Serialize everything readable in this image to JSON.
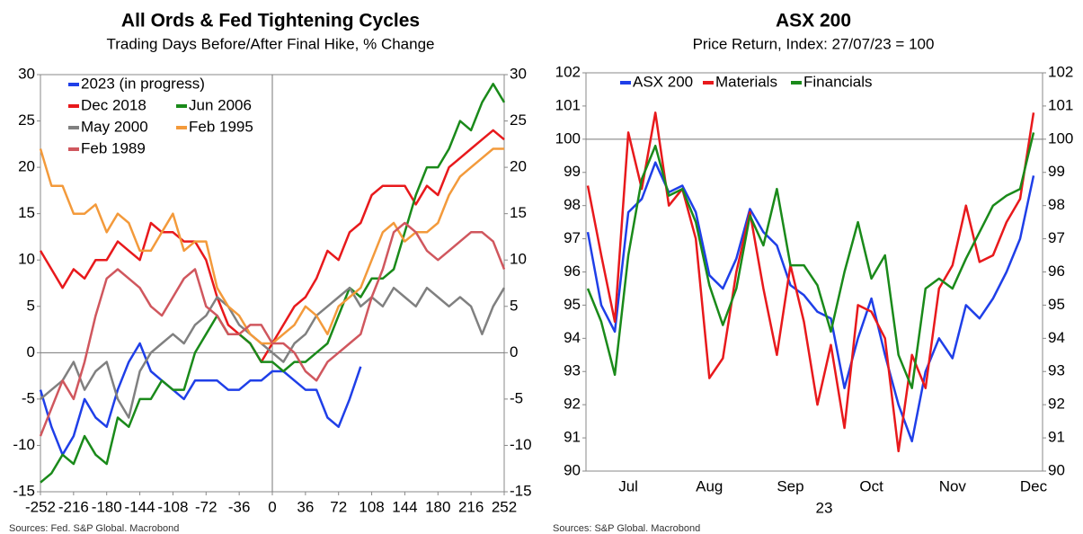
{
  "chart_data": [
    {
      "type": "line",
      "title": "All Ords & Fed Tightening Cycles",
      "subtitle": "Trading Days Before/After Final Hike, % Change",
      "source": "Sources: Fed. S&P Global. Macrobond",
      "x": [
        -252,
        -240,
        -228,
        -216,
        -204,
        -192,
        -180,
        -168,
        -156,
        -144,
        -132,
        -120,
        -108,
        -96,
        -84,
        -72,
        -60,
        -48,
        -36,
        -24,
        -12,
        0,
        12,
        24,
        36,
        48,
        60,
        72,
        84,
        96,
        108,
        120,
        132,
        144,
        156,
        168,
        180,
        192,
        204,
        216,
        228,
        240,
        252
      ],
      "xlim": [
        -252,
        252
      ],
      "xticks": [
        -252,
        -216,
        -180,
        -144,
        -108,
        -72,
        -36,
        0,
        36,
        72,
        108,
        144,
        180,
        216,
        252
      ],
      "ylim": [
        -15,
        30
      ],
      "yticks": [
        -15,
        -10,
        -5,
        0,
        5,
        10,
        15,
        20,
        25,
        30
      ],
      "hline": 0,
      "vline": 0,
      "series": [
        {
          "name": "2023 (in progress)",
          "color": "#1f3fe8",
          "values": [
            -4,
            -8,
            -11,
            -9,
            -5,
            -7,
            -8,
            -4,
            -1,
            1,
            -2,
            -3,
            -4,
            -5,
            -3,
            -3,
            -3,
            -4,
            -4,
            -3,
            -3,
            -2,
            -2,
            -3,
            -4,
            -4,
            -7,
            -8,
            -5,
            -1.5,
            null,
            null,
            null,
            null,
            null,
            null,
            null,
            null,
            null,
            null,
            null,
            null,
            null
          ]
        },
        {
          "name": "Dec 2018",
          "color": "#e8191c",
          "values": [
            11,
            9,
            7,
            9,
            8,
            10,
            10,
            12,
            11,
            10,
            14,
            13,
            13,
            12,
            12,
            10,
            6,
            3,
            2,
            1,
            -1,
            1,
            3,
            5,
            6,
            8,
            11,
            10,
            13,
            14,
            17,
            18,
            18,
            18,
            16,
            18,
            17,
            20,
            21,
            22,
            23,
            24,
            23
          ]
        },
        {
          "name": "Jun 2006",
          "color": "#1a8a1a",
          "values": [
            -14,
            -13,
            -11,
            -12,
            -9,
            -11,
            -12,
            -7,
            -8,
            -5,
            -5,
            -3,
            -4,
            -4,
            0,
            2,
            4,
            2,
            2,
            1,
            -1,
            -1,
            -2,
            -1,
            -1,
            0,
            1,
            4,
            7,
            6,
            8,
            8,
            9,
            13,
            17,
            20,
            20,
            22,
            25,
            24,
            27,
            29,
            27
          ]
        },
        {
          "name": "May 2000",
          "color": "#808080",
          "values": [
            -5,
            -4,
            -3,
            -1,
            -4,
            -2,
            -1,
            -5,
            -7,
            -2,
            0,
            1,
            2,
            1,
            3,
            4,
            6,
            5,
            3,
            2,
            1,
            0,
            -1,
            1,
            2,
            4,
            5,
            6,
            7,
            5,
            6,
            5,
            7,
            6,
            5,
            7,
            6,
            5,
            6,
            5,
            2,
            5,
            7
          ]
        },
        {
          "name": "Feb 1995",
          "color": "#f39a3b",
          "values": [
            22,
            18,
            18,
            15,
            15,
            16,
            13,
            15,
            14,
            11,
            11,
            13,
            15,
            11,
            12,
            12,
            7,
            5,
            4,
            2,
            1,
            1,
            2,
            3,
            5,
            4,
            2,
            5,
            6,
            7,
            10,
            13,
            14,
            12,
            13,
            13,
            14,
            17,
            19,
            20,
            21,
            22,
            22
          ]
        },
        {
          "name": "Feb 1989",
          "color": "#d0575e",
          "values": [
            -9,
            -6,
            -3,
            -5,
            -1,
            4,
            8,
            9,
            8,
            7,
            5,
            4,
            6,
            8,
            9,
            5,
            4,
            2,
            2,
            3,
            3,
            1,
            1,
            0,
            -2,
            -3,
            -1,
            0,
            1,
            2,
            6,
            9,
            13,
            14,
            13,
            11,
            10,
            11,
            12,
            13,
            13,
            12,
            9
          ]
        }
      ]
    },
    {
      "type": "line",
      "title": "ASX 200",
      "subtitle": "Price Return, Index: 27/07/23 = 100",
      "source": "Sources: S&P Global. Macrobond",
      "categories": [
        null,
        null,
        null,
        "Jul",
        null,
        null,
        null,
        null,
        null,
        "Aug",
        null,
        null,
        null,
        null,
        null,
        "Sep",
        null,
        null,
        null,
        null,
        null,
        "Oct",
        null,
        null,
        null,
        null,
        null,
        "Nov",
        null,
        null,
        null,
        null,
        null,
        "Dec"
      ],
      "x_sublabel": "23",
      "ylim": [
        90,
        102
      ],
      "yticks": [
        90,
        91,
        92,
        93,
        94,
        95,
        96,
        97,
        98,
        99,
        100,
        101,
        102
      ],
      "hline": 100,
      "series": [
        {
          "name": "ASX 200",
          "color": "#1f3fe8",
          "values": [
            97.2,
            95.0,
            94.2,
            97.8,
            98.2,
            99.3,
            98.4,
            98.6,
            97.8,
            95.9,
            95.5,
            96.4,
            97.9,
            97.2,
            96.8,
            95.6,
            95.3,
            94.8,
            94.6,
            92.5,
            94.0,
            95.2,
            93.5,
            92.0,
            90.9,
            93.0,
            94.0,
            93.4,
            95.0,
            94.6,
            95.2,
            96.0,
            97.0,
            98.9
          ]
        },
        {
          "name": "Materials",
          "color": "#e8191c",
          "values": [
            98.6,
            96.5,
            94.5,
            100.2,
            98.5,
            100.8,
            98.0,
            98.5,
            97.0,
            92.8,
            93.4,
            96.0,
            97.8,
            95.5,
            93.5,
            96.2,
            94.5,
            92.0,
            93.8,
            91.3,
            95.0,
            94.8,
            94.0,
            90.6,
            93.5,
            92.5,
            95.5,
            96.2,
            98.0,
            96.3,
            96.5,
            97.5,
            98.2,
            100.8
          ]
        },
        {
          "name": "Financials",
          "color": "#1a8a1a",
          "values": [
            95.5,
            94.5,
            92.9,
            96.5,
            98.8,
            99.8,
            98.3,
            98.5,
            97.5,
            95.6,
            94.4,
            95.5,
            97.7,
            96.8,
            98.5,
            96.2,
            96.2,
            95.6,
            94.2,
            96.0,
            97.5,
            95.8,
            96.5,
            93.5,
            92.5,
            95.5,
            95.8,
            95.5,
            96.4,
            97.2,
            98.0,
            98.3,
            98.5,
            100.2
          ]
        }
      ]
    }
  ]
}
